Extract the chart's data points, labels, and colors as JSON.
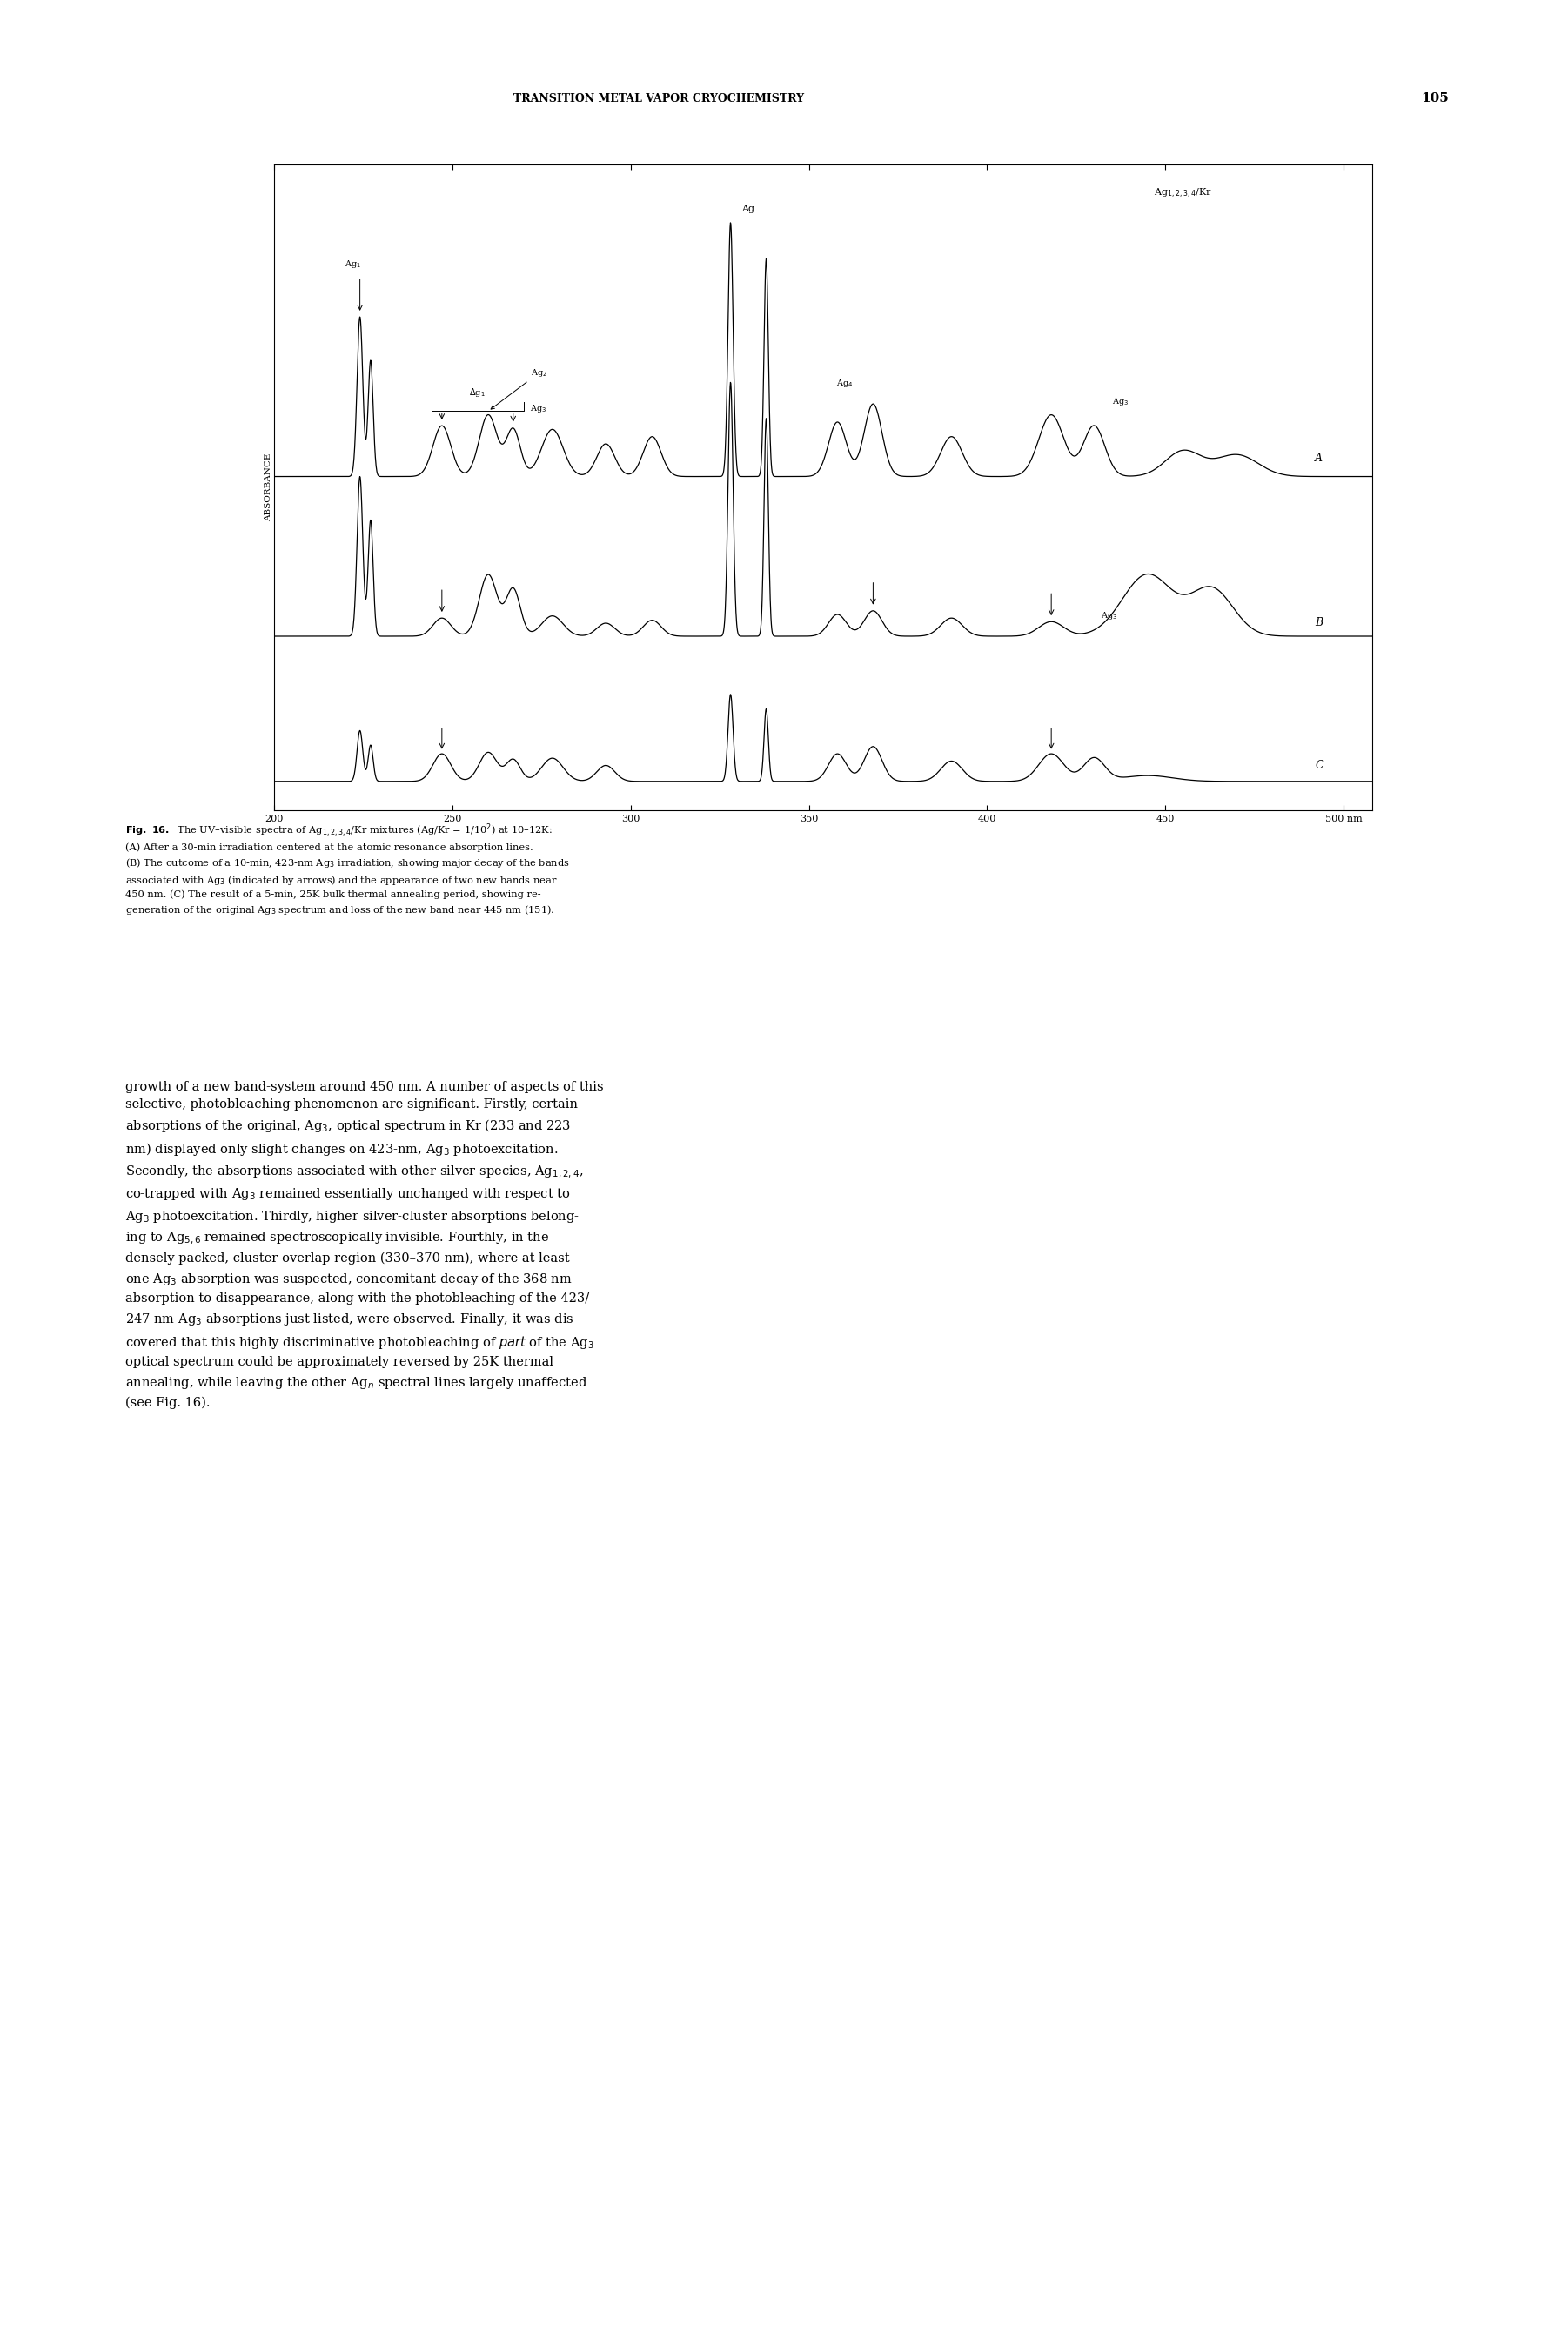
{
  "page_width": 18.02,
  "page_height": 26.99,
  "background_color": "#ffffff",
  "header_text": "TRANSITION METAL VAPOR CRYOCHEMISTRY",
  "header_page_num": "105",
  "chart": {
    "xlabel": "nm",
    "ylabel": "ABSORBANCE",
    "x_min": 200,
    "x_max": 500,
    "x_ticks": [
      200,
      250,
      300,
      350,
      400,
      450,
      500
    ],
    "x_tick_labels": [
      "200",
      "250",
      "300",
      "350",
      "400",
      "450",
      "500 nm"
    ],
    "label_A": "A",
    "label_B": "B",
    "label_C": "C",
    "title_label": "Ag$_{1,2,3,4}$/Kr"
  }
}
